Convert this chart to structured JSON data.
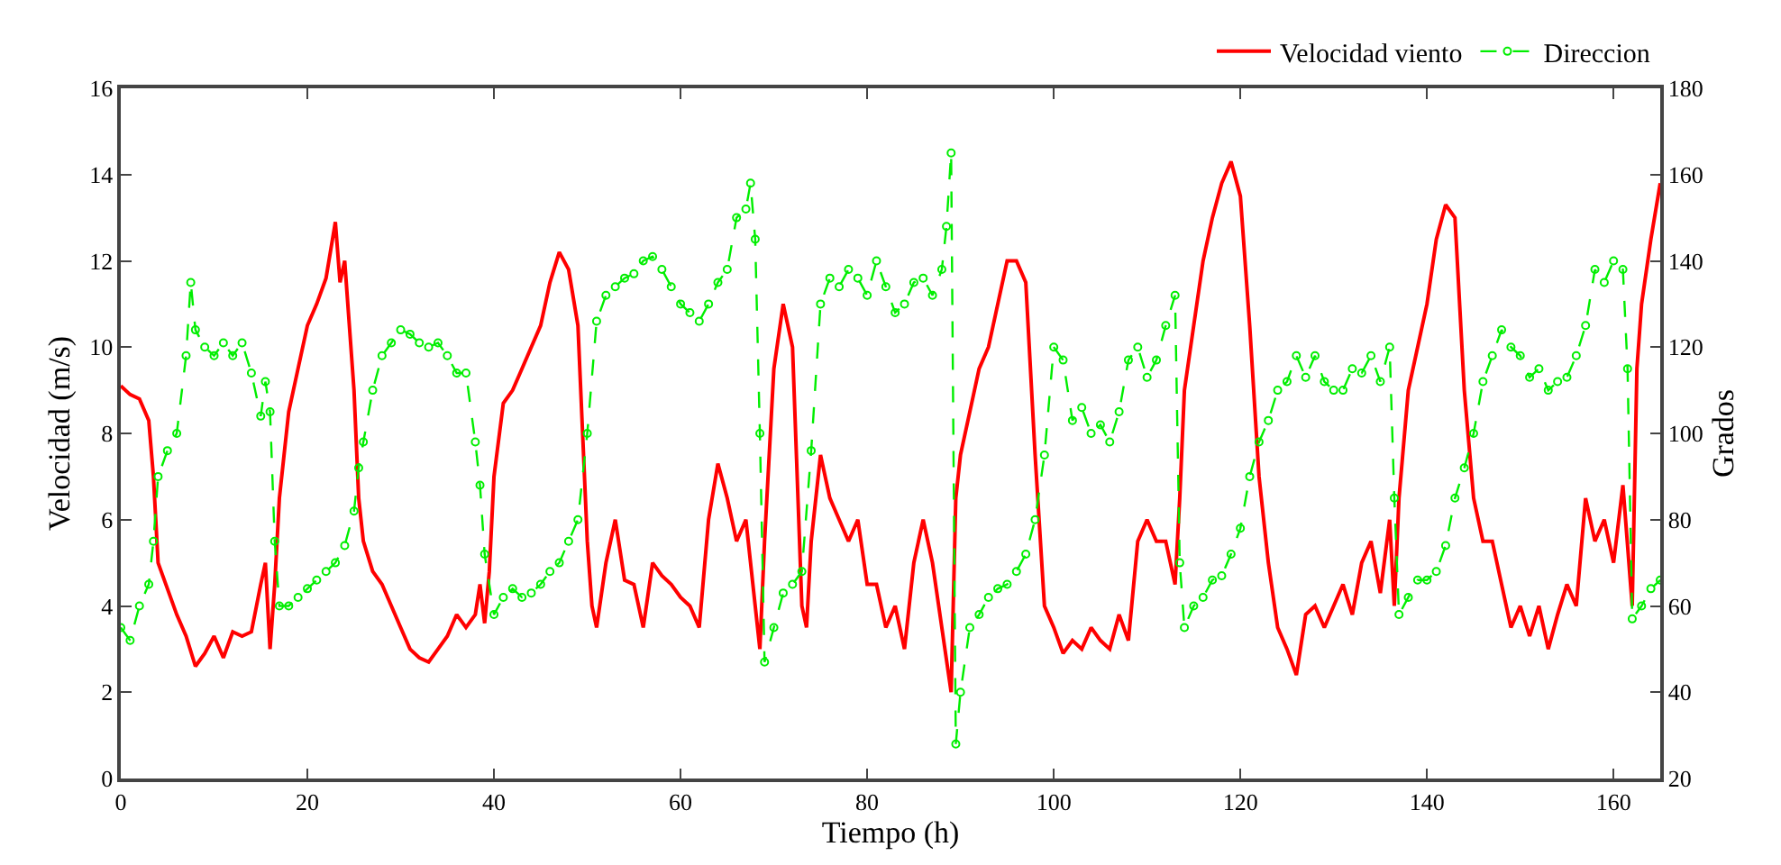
{
  "chart_data": {
    "type": "line",
    "xlabel": "Tiempo (h)",
    "ylabel": "Velocidad (m/s)",
    "y2label": "Grados",
    "xlim": [
      0,
      165
    ],
    "xticks": [
      0,
      20,
      40,
      60,
      80,
      100,
      120,
      140,
      160
    ],
    "ylim": [
      0,
      16
    ],
    "yticks": [
      0,
      2,
      4,
      6,
      8,
      10,
      12,
      14,
      16
    ],
    "y2lim": [
      20,
      180
    ],
    "y2ticks": [
      20,
      40,
      60,
      80,
      100,
      120,
      140,
      160,
      180
    ],
    "grid": false,
    "legend": "top right",
    "series": [
      {
        "name": "Velocidad viento",
        "color": "#ff0000",
        "marker": "none",
        "line_style": "solid",
        "x": [
          0,
          1,
          2,
          3,
          3.5,
          4,
          5,
          6,
          7,
          8,
          9,
          10,
          11,
          12,
          13,
          14,
          15,
          15.5,
          16,
          16.5,
          17,
          18,
          19,
          20,
          21,
          22,
          23,
          23.5,
          24,
          25,
          25.5,
          26,
          27,
          28,
          29,
          30,
          31,
          32,
          33,
          34,
          35,
          36,
          37,
          38,
          38.5,
          39,
          39.5,
          40,
          41,
          42,
          43,
          44,
          45,
          46,
          47,
          48,
          49,
          49.5,
          50,
          50.5,
          51,
          52,
          53,
          54,
          55,
          56,
          57,
          58,
          59,
          60,
          61,
          62,
          63,
          64,
          65,
          66,
          67,
          68,
          68.5,
          69,
          70,
          71,
          72,
          73,
          73.5,
          74,
          75,
          76,
          77,
          78,
          79,
          80,
          81,
          82,
          83,
          84,
          85,
          86,
          87,
          88,
          89,
          89.5,
          90,
          91,
          92,
          93,
          94,
          95,
          96,
          97,
          98,
          99,
          100,
          101,
          102,
          103,
          104,
          105,
          106,
          107,
          108,
          109,
          110,
          111,
          112,
          113,
          113.5,
          114,
          115,
          116,
          117,
          118,
          119,
          120,
          121,
          122,
          123,
          124,
          125,
          126,
          127,
          128,
          129,
          130,
          131,
          132,
          133,
          134,
          135,
          136,
          136.5,
          137,
          138,
          139,
          140,
          141,
          142,
          143,
          144,
          145,
          146,
          147,
          148,
          149,
          150,
          151,
          152,
          153,
          154,
          155,
          156,
          157,
          158,
          159,
          160,
          161,
          162,
          162.5,
          163,
          164,
          165
        ],
        "values": [
          9.1,
          8.9,
          8.8,
          8.3,
          7.0,
          5.0,
          4.4,
          3.8,
          3.3,
          2.6,
          2.9,
          3.3,
          2.8,
          3.4,
          3.3,
          3.4,
          4.5,
          5.0,
          3.0,
          4.5,
          6.5,
          8.5,
          9.5,
          10.5,
          11.0,
          11.6,
          12.9,
          11.5,
          12.0,
          9.0,
          6.5,
          5.5,
          4.8,
          4.5,
          4.0,
          3.5,
          3.0,
          2.8,
          2.7,
          3.0,
          3.3,
          3.8,
          3.5,
          3.8,
          4.5,
          3.6,
          4.8,
          7.0,
          8.7,
          9.0,
          9.5,
          10.0,
          10.5,
          11.5,
          12.2,
          11.8,
          10.5,
          8.0,
          5.5,
          4.0,
          3.5,
          5.0,
          6.0,
          4.6,
          4.5,
          3.5,
          5.0,
          4.7,
          4.5,
          4.2,
          4.0,
          3.5,
          6.0,
          7.3,
          6.5,
          5.5,
          6.0,
          4.0,
          3.0,
          5.5,
          9.5,
          11.0,
          10.0,
          4.0,
          3.5,
          5.5,
          7.5,
          6.5,
          6.0,
          5.5,
          6.0,
          4.5,
          4.5,
          3.5,
          4.0,
          3.0,
          5.0,
          6.0,
          5.0,
          3.5,
          2.0,
          6.5,
          7.5,
          8.5,
          9.5,
          10.0,
          11.0,
          12.0,
          12.0,
          11.5,
          7.5,
          4.0,
          3.5,
          2.9,
          3.2,
          3.0,
          3.5,
          3.2,
          3.0,
          3.8,
          3.2,
          5.5,
          6.0,
          5.5,
          5.5,
          4.5,
          6.5,
          9.0,
          10.5,
          12.0,
          13.0,
          13.8,
          14.3,
          13.5,
          10.5,
          7.0,
          5.0,
          3.5,
          3.0,
          2.4,
          3.8,
          4.0,
          3.5,
          4.0,
          4.5,
          3.8,
          5.0,
          5.5,
          4.3,
          6.0,
          4.0,
          6.5,
          9.0,
          10.0,
          11.0,
          12.5,
          13.3,
          13.0,
          9.0,
          6.5,
          5.5,
          5.5,
          4.5,
          3.5,
          4.0,
          3.3,
          4.0,
          3.0,
          3.8,
          4.5,
          4.0,
          6.5,
          5.5,
          6.0,
          5.0,
          6.8,
          4.0,
          9.5,
          11.0,
          12.5,
          13.8
        ]
      },
      {
        "name": "Direccion",
        "color": "#00ee00",
        "axis": "y2",
        "marker": "circle",
        "line_style": "dashed",
        "x": [
          0,
          1,
          2,
          3,
          3.5,
          4,
          5,
          6,
          7,
          7.5,
          8,
          9,
          10,
          11,
          12,
          13,
          14,
          15,
          15.5,
          16,
          16.5,
          17,
          18,
          19,
          20,
          21,
          22,
          23,
          24,
          25,
          25.5,
          26,
          27,
          28,
          29,
          30,
          31,
          32,
          33,
          34,
          35,
          36,
          37,
          38,
          38.5,
          39,
          40,
          41,
          42,
          43,
          44,
          45,
          46,
          47,
          48,
          49,
          50,
          51,
          52,
          53,
          54,
          55,
          56,
          57,
          58,
          59,
          60,
          61,
          62,
          63,
          64,
          65,
          66,
          67,
          67.5,
          68,
          68.5,
          69,
          70,
          71,
          72,
          73,
          74,
          75,
          76,
          77,
          78,
          79,
          80,
          81,
          82,
          83,
          84,
          85,
          86,
          87,
          88,
          88.5,
          89,
          89.5,
          90,
          91,
          92,
          93,
          94,
          95,
          96,
          97,
          98,
          99,
          100,
          101,
          102,
          103,
          104,
          105,
          106,
          107,
          108,
          109,
          110,
          111,
          112,
          113,
          113.5,
          114,
          115,
          116,
          117,
          118,
          119,
          120,
          121,
          122,
          123,
          124,
          125,
          126,
          127,
          128,
          129,
          130,
          131,
          132,
          133,
          134,
          135,
          136,
          136.5,
          137,
          138,
          139,
          140,
          141,
          142,
          143,
          144,
          145,
          146,
          147,
          148,
          149,
          150,
          151,
          152,
          153,
          154,
          155,
          156,
          157,
          158,
          159,
          160,
          161,
          161.5,
          162,
          163,
          164,
          165
        ],
        "values": [
          55,
          52,
          60,
          65,
          75,
          90,
          96,
          100,
          118,
          135,
          124,
          120,
          118,
          121,
          118,
          121,
          114,
          104,
          112,
          105,
          75,
          60,
          60,
          62,
          64,
          66,
          68,
          70,
          74,
          82,
          92,
          98,
          110,
          118,
          121,
          124,
          123,
          121,
          120,
          121,
          118,
          114,
          114,
          98,
          88,
          72,
          58,
          62,
          64,
          62,
          63,
          65,
          68,
          70,
          75,
          80,
          100,
          126,
          132,
          134,
          136,
          137,
          140,
          141,
          138,
          134,
          130,
          128,
          126,
          130,
          135,
          138,
          150,
          152,
          158,
          145,
          100,
          47,
          55,
          63,
          65,
          68,
          96,
          130,
          136,
          134,
          138,
          136,
          132,
          140,
          134,
          128,
          130,
          135,
          136,
          132,
          138,
          148,
          165,
          28,
          40,
          55,
          58,
          62,
          64,
          65,
          68,
          72,
          80,
          95,
          120,
          117,
          103,
          106,
          100,
          102,
          98,
          105,
          117,
          120,
          113,
          117,
          125,
          132,
          70,
          55,
          60,
          62,
          66,
          67,
          72,
          78,
          90,
          98,
          103,
          110,
          112,
          118,
          113,
          118,
          112,
          110,
          110,
          115,
          114,
          118,
          112,
          120,
          85,
          58,
          62,
          66,
          66,
          68,
          74,
          85,
          92,
          100,
          112,
          118,
          124,
          120,
          118,
          113,
          115,
          110,
          112,
          113,
          118,
          125,
          138,
          135,
          140,
          138,
          115,
          57,
          60,
          64,
          66
        ]
      }
    ]
  }
}
